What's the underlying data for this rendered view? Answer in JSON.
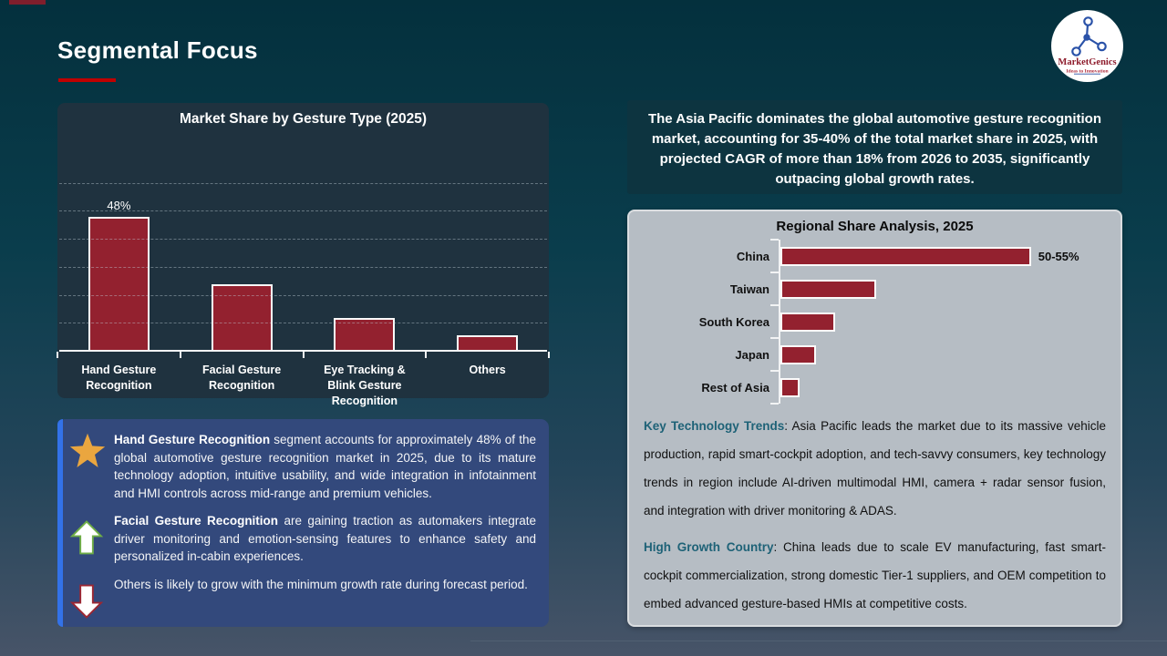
{
  "slide": {
    "title": "Segmental Focus",
    "logo": {
      "brand": "MarketGenics",
      "tagline": "Ideas to Innovation"
    }
  },
  "colors": {
    "title_underline": "#c00000",
    "bar_fill": "#93212f",
    "chart_panel_bg": "#1f323f",
    "callout_bg": "#33497c",
    "callout_stripe": "#3372e8",
    "gray_panel_bg": "#b6bdc4",
    "teal_lead": "#1e6277",
    "star_gold": "#eaa63f",
    "arrow_up_border": "#6fae46",
    "arrow_down_border": "#9c2733"
  },
  "chart_data": [
    {
      "type": "bar",
      "title": "Market Share by Gesture Type (2025)",
      "categories": [
        "Hand Gesture Recognition",
        "Facial Gesture Recognition",
        "Eye Tracking & Blink Gesture Recognition",
        "Others"
      ],
      "values": [
        48,
        24,
        12,
        6
      ],
      "data_labels": [
        "48%",
        "",
        "",
        ""
      ],
      "xlabel": "",
      "ylabel": "",
      "ylim": [
        0,
        80
      ],
      "gridlines": [
        10,
        20,
        30,
        40,
        50,
        60
      ],
      "grid": "dashed horizontal",
      "legend": "none"
    },
    {
      "type": "bar",
      "orientation": "horizontal",
      "title": "Regional Share Analysis, 2025",
      "categories": [
        "China",
        "Taiwan",
        "South Korea",
        "Japan",
        "Rest of Asia"
      ],
      "values": [
        52.5,
        20,
        11.5,
        7.5,
        4
      ],
      "data_labels": [
        "50-55%",
        "",
        "",
        "",
        ""
      ],
      "xlabel": "",
      "ylabel": "",
      "xlim": [
        0,
        60
      ],
      "grid": "off",
      "legend": "none"
    }
  ],
  "left_notes": {
    "bullets": [
      {
        "icon": "star",
        "lead": "Hand Gesture Recognition",
        "text": " segment accounts for approximately 48% of the global automotive gesture recognition market in 2025, due to its mature technology adoption, intuitive usability, and wide integration in infotainment and HMI controls across mid-range and premium vehicles."
      },
      {
        "icon": "arrow-up",
        "lead": "Facial Gesture Recognition",
        "text": " are gaining traction as automakers integrate driver monitoring and emotion-sensing features to enhance safety and personalized in-cabin experiences."
      },
      {
        "icon": "arrow-down",
        "lead": "",
        "text": "Others is likely to grow with the minimum growth rate during forecast period."
      }
    ]
  },
  "right_summary": "The Asia Pacific dominates the global automotive gesture recognition market, accounting for 35-40% of the total market share in 2025, with projected CAGR of more than 18% from 2026 to 2035, significantly outpacing global growth rates.",
  "right_notes": [
    {
      "lead": "Key Technology Trends",
      "text": ": Asia Pacific leads the market due to its massive vehicle production, rapid smart-cockpit adoption, and tech-savvy consumers, key technology trends in region include AI-driven multimodal HMI, camera + radar sensor fusion, and integration with driver monitoring & ADAS."
    },
    {
      "lead": "High Growth Country",
      "text": ": China leads due to scale EV manufacturing, fast smart-cockpit commercialization, strong domestic Tier-1 suppliers, and OEM competition to embed advanced gesture-based HMIs at competitive costs."
    }
  ]
}
